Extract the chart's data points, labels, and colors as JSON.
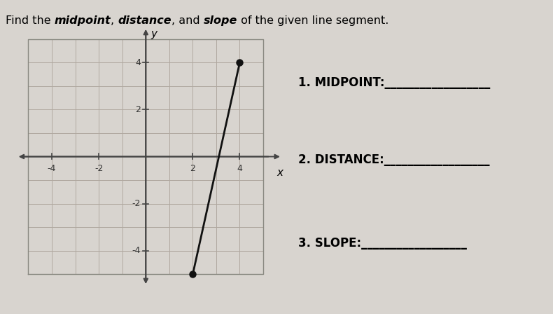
{
  "title_parts": [
    {
      "text": "Find the ",
      "bold": false,
      "italic": false
    },
    {
      "text": "midpoint",
      "bold": true,
      "italic": true
    },
    {
      "text": ", ",
      "bold": false,
      "italic": false
    },
    {
      "text": "distance",
      "bold": true,
      "italic": true
    },
    {
      "text": ", and ",
      "bold": false,
      "italic": false
    },
    {
      "text": "slope",
      "bold": true,
      "italic": true
    },
    {
      "text": " of the given line segment.",
      "bold": false,
      "italic": false
    }
  ],
  "title_fontsize": 11.5,
  "bg_color": "#d8d4cf",
  "grid_color": "#b0a8a0",
  "axis_color": "#444444",
  "line_color": "#111111",
  "point_color": "#111111",
  "point1": [
    2,
    -5
  ],
  "point2": [
    4,
    4
  ],
  "xlim": [
    -5.5,
    5.8
  ],
  "ylim": [
    -5.8,
    5.5
  ],
  "xticks": [
    -4,
    -2,
    2,
    4
  ],
  "yticks": [
    -4,
    -2,
    2,
    4
  ],
  "xlabel": "x",
  "ylabel": "y",
  "tick_fontsize": 9,
  "label_fontsize": 11,
  "q1_label": "1. MIDPOINT:",
  "q2_label": "2. DISTANCE:",
  "q3_label": "3. SLOPE:",
  "question_fontsize": 12,
  "line_char": "_",
  "line_count": 18
}
